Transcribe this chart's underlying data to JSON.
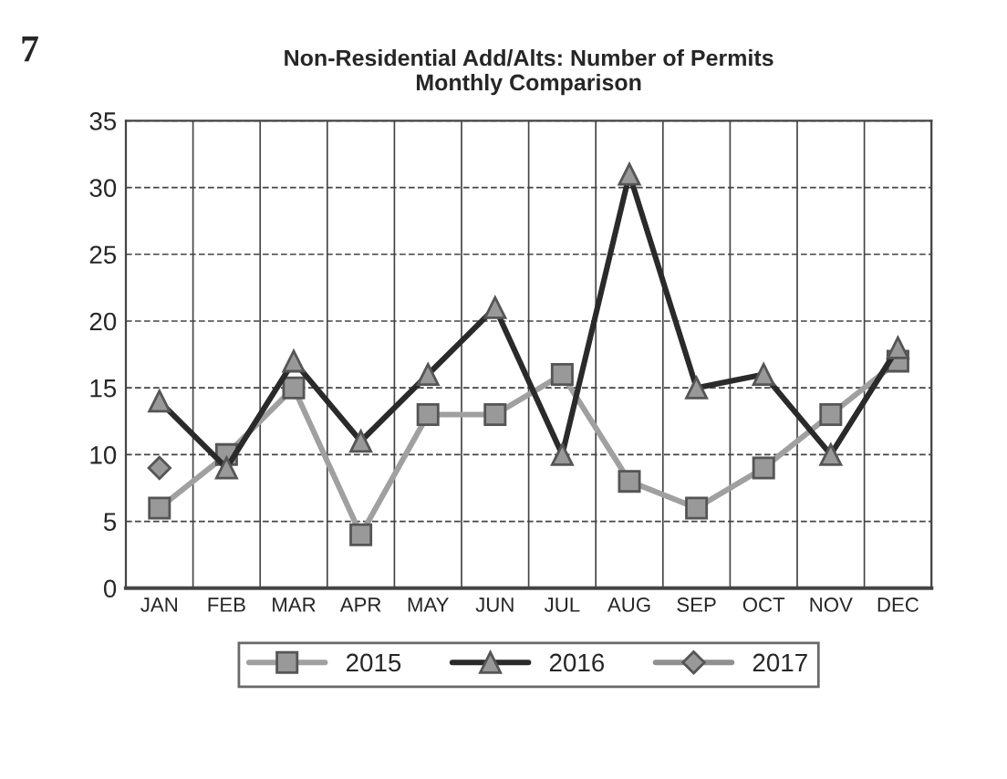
{
  "chart_data": {
    "type": "line",
    "title": "Non-Residential Add/Alts: Number of Permits\nMonthly Comparison",
    "categories": [
      "JAN",
      "FEB",
      "MAR",
      "APR",
      "MAY",
      "JUN",
      "JUL",
      "AUG",
      "SEP",
      "OCT",
      "NOV",
      "DEC"
    ],
    "series": [
      {
        "name": "2015",
        "color": "#a0a0a0",
        "marker": "square",
        "values": [
          6,
          10,
          15,
          4,
          13,
          13,
          16,
          8,
          6,
          9,
          13,
          17
        ]
      },
      {
        "name": "2016",
        "color": "#2a2a2a",
        "marker": "triangle",
        "values": [
          14,
          9,
          17,
          11,
          16,
          21,
          10,
          31,
          15,
          16,
          10,
          18
        ]
      },
      {
        "name": "2017",
        "color": "#909090",
        "marker": "diamond",
        "values": [
          9,
          null,
          null,
          null,
          null,
          null,
          null,
          null,
          null,
          null,
          null,
          null
        ]
      }
    ],
    "ylim": [
      0,
      35
    ],
    "yticks": [
      0,
      5,
      10,
      15,
      20,
      25,
      30,
      35
    ],
    "grid": true,
    "legend": "bottom",
    "annotations": [
      "7"
    ]
  }
}
